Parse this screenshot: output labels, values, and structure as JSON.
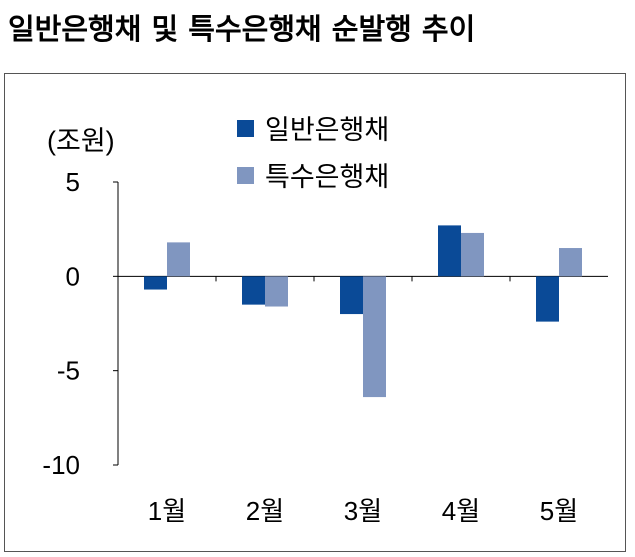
{
  "title": "일반은행채 및 특수은행채 순발행 추이",
  "chart_data": {
    "type": "bar",
    "title": "일반은행채 및 특수은행채 순발행 추이",
    "unit_label": "(조원)",
    "categories": [
      "1월",
      "2월",
      "3월",
      "4월",
      "5월"
    ],
    "series": [
      {
        "name": "일반은행채",
        "color": "#0a4a97",
        "values": [
          -0.7,
          -1.5,
          -2.0,
          2.7,
          -2.4
        ]
      },
      {
        "name": "특수은행채",
        "color": "#8096c0",
        "values": [
          1.8,
          -1.6,
          -6.4,
          2.3,
          1.5
        ]
      }
    ],
    "ylim": [
      -10,
      5
    ],
    "yticks": [
      5,
      0,
      -5,
      -10
    ],
    "ytick_labels": [
      "5",
      "0",
      "-5",
      "-10"
    ],
    "xlabel": "",
    "ylabel": "",
    "legend_position": "top-center",
    "grid": false
  }
}
